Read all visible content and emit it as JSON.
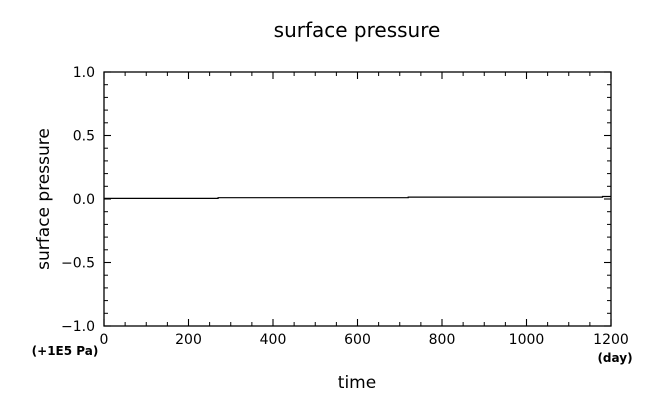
{
  "chart_data": {
    "type": "line",
    "title": "surface pressure",
    "xlabel": "time",
    "ylabel": "surface pressure",
    "x_unit": "(day)",
    "y_unit": "(+1E5 Pa)",
    "xlim": [
      0,
      1200
    ],
    "ylim": [
      -1.0,
      1.0
    ],
    "x_ticks": [
      0,
      200,
      400,
      600,
      800,
      1000,
      1200
    ],
    "x_tick_labels": [
      "0",
      "200",
      "400",
      "600",
      "800",
      "1000",
      "1200"
    ],
    "y_ticks": [
      -1.0,
      -0.5,
      0.0,
      0.5,
      1.0
    ],
    "y_tick_labels": [
      "−1.0",
      "−0.5",
      "0.0",
      "0.5",
      "1.0"
    ],
    "grid": false,
    "series": [
      {
        "x": [
          0,
          270,
          270,
          720,
          720,
          1180,
          1180,
          1200
        ],
        "y": [
          0.005,
          0.005,
          0.01,
          0.01,
          0.015,
          0.015,
          0.02,
          0.02
        ]
      }
    ]
  }
}
